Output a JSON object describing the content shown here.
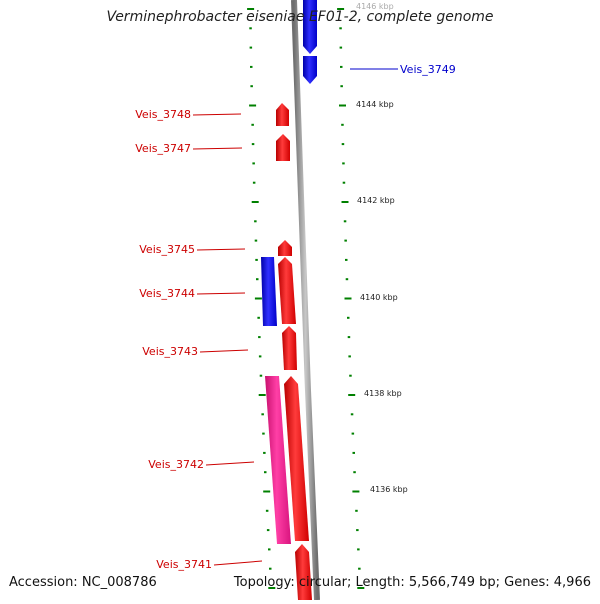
{
  "title": "Verminephrobacter eiseniae EF01-2, complete genome",
  "accession": "Accession: NC_008786",
  "summary": "Topology: circular; Length: 5,566,749 bp; Genes: 4,966",
  "colors": {
    "forward_gene": "#ff0000",
    "reverse_gene": "#0000ff",
    "rna_gene": "#ff1493",
    "tick": "#008000",
    "backbone": "#808080",
    "label_forward": "#cc0000",
    "label_reverse": "#0000cc"
  },
  "scale_labels": [
    "4146 kbp",
    "4144 kbp",
    "4142 kbp",
    "4140 kbp",
    "4138 kbp",
    "4136 kbp"
  ],
  "gene_labels": [
    {
      "text": "Veis_3749",
      "strand": "reverse"
    },
    {
      "text": "Veis_3748",
      "strand": "forward"
    },
    {
      "text": "Veis_3747",
      "strand": "forward"
    },
    {
      "text": "Veis_3745",
      "strand": "forward"
    },
    {
      "text": "Veis_3744",
      "strand": "forward"
    },
    {
      "text": "Veis_3743",
      "strand": "forward"
    },
    {
      "text": "Veis_3742",
      "strand": "forward"
    },
    {
      "text": "Veis_3741",
      "strand": "forward"
    }
  ]
}
